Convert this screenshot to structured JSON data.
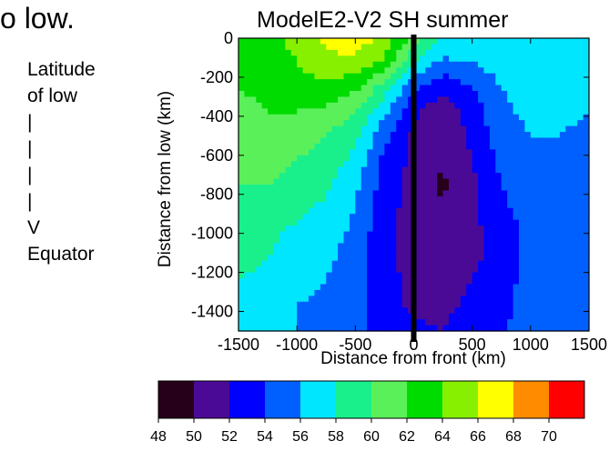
{
  "slide": {
    "top_text": "o low.",
    "side_note_lines": [
      "Latitude",
      "of low",
      "|",
      "|",
      "|",
      "|",
      "V",
      "Equator"
    ]
  },
  "chart_data": {
    "type": "heatmap",
    "title": "ModelE2-V2 SH summer",
    "xlabel": "Distance from front (km)",
    "ylabel": "Distance from low (km)",
    "xlim": [
      -1500,
      1500
    ],
    "ylim": [
      -1500,
      0
    ],
    "x_ticks": [
      -1500,
      -1000,
      -500,
      0,
      500,
      1000,
      1500
    ],
    "y_ticks": [
      0,
      -200,
      -400,
      -600,
      -800,
      -1000,
      -1200,
      -1400
    ],
    "front_line_x": 0,
    "x": [
      -1500,
      -1250,
      -1000,
      -750,
      -500,
      -250,
      0,
      250,
      500,
      750,
      1000,
      1250,
      1500
    ],
    "y": [
      0,
      -125,
      -250,
      -375,
      -500,
      -625,
      -750,
      -875,
      -1000,
      -1125,
      -1250,
      -1375,
      -1500
    ],
    "z": [
      [
        63,
        63.5,
        64.5,
        66.5,
        67,
        65.5,
        61,
        58,
        58,
        58,
        58,
        58,
        57.5
      ],
      [
        62.5,
        63,
        64,
        65.5,
        65.5,
        63.5,
        58,
        55.5,
        56,
        57,
        57.5,
        57.5,
        57
      ],
      [
        62,
        62.5,
        63,
        63.5,
        62.5,
        59,
        54.5,
        52.5,
        54,
        56,
        57,
        57,
        56.5
      ],
      [
        61.5,
        62,
        62,
        61.5,
        60,
        56.5,
        52.5,
        50.5,
        53,
        55.5,
        56.5,
        56.5,
        56
      ],
      [
        61,
        61.5,
        61,
        60,
        58.5,
        54.5,
        51.5,
        50.5,
        52.5,
        55,
        56,
        56,
        55.5
      ],
      [
        60.5,
        60.5,
        60,
        59,
        57.5,
        53.5,
        51.5,
        50.5,
        52,
        54.5,
        55.5,
        55.5,
        55
      ],
      [
        60,
        60,
        59.5,
        58.5,
        56.5,
        53,
        51,
        49.5,
        51.5,
        54,
        55,
        55.5,
        55
      ],
      [
        59.5,
        59,
        58.5,
        57.5,
        56,
        53,
        51,
        50.5,
        51.5,
        53.5,
        55,
        55,
        54.5
      ],
      [
        59,
        58.5,
        57.5,
        57,
        55.5,
        52.5,
        51,
        50.5,
        51.5,
        53,
        54.5,
        55,
        54.5
      ],
      [
        58.5,
        58,
        57,
        56.5,
        55,
        52.5,
        51,
        51,
        51.5,
        53,
        54.5,
        54.5,
        54
      ],
      [
        58,
        57.5,
        56.5,
        56,
        54.5,
        53,
        51.5,
        51,
        52,
        53.5,
        54.5,
        54.5,
        54
      ],
      [
        57.5,
        57,
        56,
        55.5,
        54.5,
        53,
        51.5,
        51.5,
        52.5,
        53.5,
        54.5,
        54.5,
        54
      ],
      [
        57,
        56.5,
        56,
        55.5,
        54.5,
        53.5,
        52.5,
        52,
        53,
        54,
        54.5,
        54.5,
        54
      ]
    ],
    "colorbar": {
      "ticks": [
        48,
        50,
        52,
        54,
        56,
        58,
        60,
        62,
        64,
        66,
        68,
        70
      ],
      "colors": [
        "#26001a",
        "#4b0a96",
        "#0000ff",
        "#0060ff",
        "#00e6ff",
        "#19f08c",
        "#5af05a",
        "#00dc00",
        "#87f000",
        "#ffff00",
        "#ff8c00",
        "#ff0000"
      ]
    }
  }
}
